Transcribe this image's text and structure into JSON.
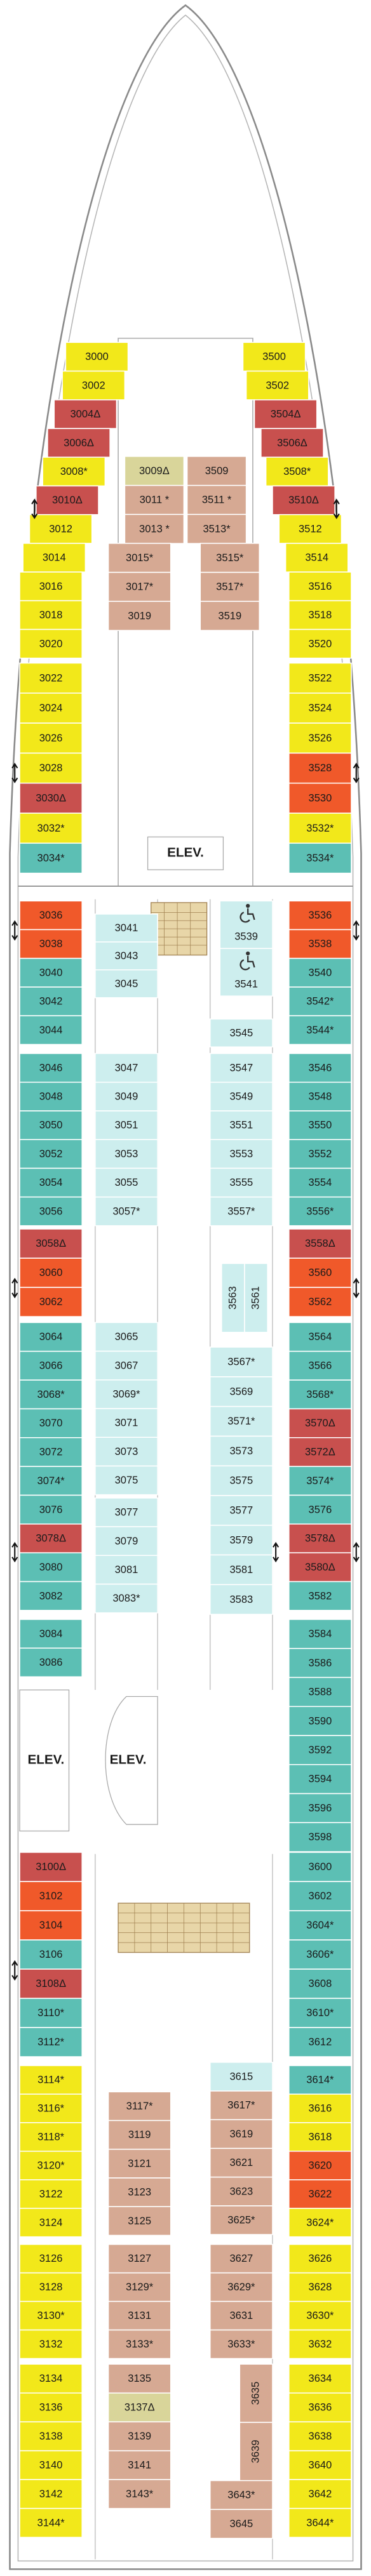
{
  "blocks": [
    {
      "cabins": [
        {
          "label": "3000",
          "color": "#f2e81a"
        },
        {
          "label": "3002",
          "color": "#f2e81a"
        },
        {
          "label": "3004Δ",
          "color": "#c8504e"
        },
        {
          "label": "3006Δ",
          "color": "#c8504e"
        },
        {
          "label": "3008*",
          "color": "#f2e81a"
        },
        {
          "label": "3010Δ",
          "color": "#c8504e"
        },
        {
          "label": "3012",
          "color": "#f2e81a"
        },
        {
          "label": "3014",
          "color": "#f2e81a"
        },
        {
          "label": "3016",
          "color": "#f2e81a"
        },
        {
          "label": "3018",
          "color": "#f2e81a"
        },
        {
          "label": "3020",
          "color": "#f2e81a"
        }
      ]
    },
    {
      "cabins": [
        {
          "label": "3500",
          "color": "#f2e81a"
        },
        {
          "label": "3502",
          "color": "#f2e81a"
        },
        {
          "label": "3504Δ",
          "color": "#c8504e"
        },
        {
          "label": "3506Δ",
          "color": "#c8504e"
        },
        {
          "label": "3508*",
          "color": "#f2e81a"
        },
        {
          "label": "3510Δ",
          "color": "#c8504e"
        },
        {
          "label": "3512",
          "color": "#f2e81a"
        },
        {
          "label": "3514",
          "color": "#f2e81a"
        },
        {
          "label": "3516",
          "color": "#f2e81a"
        },
        {
          "label": "3518",
          "color": "#f2e81a"
        },
        {
          "label": "3520",
          "color": "#f2e81a"
        }
      ]
    },
    {
      "cabins": [
        {
          "label": "3022",
          "color": "#f2e81a"
        },
        {
          "label": "3024",
          "color": "#f2e81a"
        },
        {
          "label": "3026",
          "color": "#f2e81a"
        },
        {
          "label": "3028",
          "color": "#f2e81a"
        },
        {
          "label": "3030Δ",
          "color": "#c8504e"
        },
        {
          "label": "3032*",
          "color": "#f2e81a"
        },
        {
          "label": "3034*",
          "color": "#5cbfb4"
        }
      ]
    },
    {
      "cabins": [
        {
          "label": "3522",
          "color": "#f2e81a"
        },
        {
          "label": "3524",
          "color": "#f2e81a"
        },
        {
          "label": "3526",
          "color": "#f2e81a"
        },
        {
          "label": "3528",
          "color": "#f0592a"
        },
        {
          "label": "3530",
          "color": "#f0592a"
        },
        {
          "label": "3532*",
          "color": "#f2e81a"
        },
        {
          "label": "3534*",
          "color": "#5cbfb4"
        }
      ]
    },
    {
      "cabins": [
        {
          "label": "3009Δ",
          "color": "#d9d59a"
        },
        {
          "label": "3011 *",
          "color": "#d6a993"
        },
        {
          "label": "3013 *",
          "color": "#d6a993"
        }
      ]
    },
    {
      "cabins": [
        {
          "label": "3015*",
          "color": "#d6a993"
        },
        {
          "label": "3017*",
          "color": "#d6a993"
        },
        {
          "label": "3019",
          "color": "#d6a993"
        }
      ]
    },
    {
      "cabins": [
        {
          "label": "3509",
          "color": "#d6a993"
        },
        {
          "label": "3511 *",
          "color": "#d6a993"
        },
        {
          "label": "3513*",
          "color": "#d6a993"
        }
      ]
    },
    {
      "cabins": [
        {
          "label": "3515*",
          "color": "#d6a993"
        },
        {
          "label": "3517*",
          "color": "#d6a993"
        },
        {
          "label": "3519",
          "color": "#d6a993"
        }
      ]
    },
    {
      "cabins": [
        {
          "label": "3036",
          "color": "#f0592a"
        },
        {
          "label": "3038",
          "color": "#f0592a"
        },
        {
          "label": "3040",
          "color": "#5cbfb4"
        },
        {
          "label": "3042",
          "color": "#5cbfb4"
        },
        {
          "label": "3044",
          "color": "#5cbfb4"
        }
      ]
    },
    {
      "cabins": [
        {
          "label": "3046",
          "color": "#5cbfb4"
        },
        {
          "label": "3048",
          "color": "#5cbfb4"
        },
        {
          "label": "3050",
          "color": "#5cbfb4"
        },
        {
          "label": "3052",
          "color": "#5cbfb4"
        },
        {
          "label": "3054",
          "color": "#5cbfb4"
        },
        {
          "label": "3056",
          "color": "#5cbfb4"
        }
      ]
    },
    {
      "cabins": [
        {
          "label": "3058Δ",
          "color": "#c8504e"
        },
        {
          "label": "3060",
          "color": "#f0592a"
        },
        {
          "label": "3062",
          "color": "#f0592a"
        }
      ]
    },
    {
      "cabins": [
        {
          "label": "3064",
          "color": "#5cbfb4"
        },
        {
          "label": "3066",
          "color": "#5cbfb4"
        },
        {
          "label": "3068*",
          "color": "#5cbfb4"
        },
        {
          "label": "3070",
          "color": "#5cbfb4"
        },
        {
          "label": "3072",
          "color": "#5cbfb4"
        },
        {
          "label": "3074*",
          "color": "#5cbfb4"
        },
        {
          "label": "3076",
          "color": "#5cbfb4"
        },
        {
          "label": "3078Δ",
          "color": "#c8504e"
        },
        {
          "label": "3080",
          "color": "#5cbfb4"
        },
        {
          "label": "3082",
          "color": "#5cbfb4"
        }
      ]
    },
    {
      "cabins": [
        {
          "label": "3084",
          "color": "#5cbfb4"
        },
        {
          "label": "3086",
          "color": "#5cbfb4"
        }
      ]
    },
    {
      "cabins": [
        {
          "label": "3100Δ",
          "color": "#c8504e"
        },
        {
          "label": "3102",
          "color": "#f0592a"
        },
        {
          "label": "3104",
          "color": "#f0592a"
        },
        {
          "label": "3106",
          "color": "#5cbfb4"
        },
        {
          "label": "3108Δ",
          "color": "#c8504e"
        },
        {
          "label": "3110*",
          "color": "#5cbfb4"
        },
        {
          "label": "3112*",
          "color": "#5cbfb4"
        }
      ]
    },
    {
      "cabins": [
        {
          "label": "3114*",
          "color": "#f2e81a"
        },
        {
          "label": "3116*",
          "color": "#f2e81a"
        },
        {
          "label": "3118*",
          "color": "#f2e81a"
        },
        {
          "label": "3120*",
          "color": "#f2e81a"
        },
        {
          "label": "3122",
          "color": "#f2e81a"
        },
        {
          "label": "3124",
          "color": "#f2e81a"
        }
      ]
    },
    {
      "cabins": [
        {
          "label": "3126",
          "color": "#f2e81a"
        },
        {
          "label": "3128",
          "color": "#f2e81a"
        },
        {
          "label": "3130*",
          "color": "#f2e81a"
        },
        {
          "label": "3132",
          "color": "#f2e81a"
        }
      ]
    },
    {
      "cabins": [
        {
          "label": "3134",
          "color": "#f2e81a"
        },
        {
          "label": "3136",
          "color": "#f2e81a"
        },
        {
          "label": "3138",
          "color": "#f2e81a"
        },
        {
          "label": "3140",
          "color": "#f2e81a"
        },
        {
          "label": "3142",
          "color": "#f2e81a"
        },
        {
          "label": "3144*",
          "color": "#f2e81a"
        }
      ]
    },
    {
      "cabins": [
        {
          "label": "3536",
          "color": "#f0592a"
        },
        {
          "label": "3538",
          "color": "#f0592a"
        },
        {
          "label": "3540",
          "color": "#5cbfb4"
        },
        {
          "label": "3542*",
          "color": "#5cbfb4"
        },
        {
          "label": "3544*",
          "color": "#5cbfb4"
        }
      ]
    },
    {
      "cabins": [
        {
          "label": "3546",
          "color": "#5cbfb4"
        },
        {
          "label": "3548",
          "color": "#5cbfb4"
        },
        {
          "label": "3550",
          "color": "#5cbfb4"
        },
        {
          "label": "3552",
          "color": "#5cbfb4"
        },
        {
          "label": "3554",
          "color": "#5cbfb4"
        },
        {
          "label": "3556*",
          "color": "#5cbfb4"
        }
      ]
    },
    {
      "cabins": [
        {
          "label": "3558Δ",
          "color": "#c8504e"
        },
        {
          "label": "3560",
          "color": "#f0592a"
        },
        {
          "label": "3562",
          "color": "#f0592a"
        }
      ]
    },
    {
      "cabins": [
        {
          "label": "3564",
          "color": "#5cbfb4"
        },
        {
          "label": "3566",
          "color": "#5cbfb4"
        },
        {
          "label": "3568*",
          "color": "#5cbfb4"
        },
        {
          "label": "3570Δ",
          "color": "#c8504e"
        },
        {
          "label": "3572Δ",
          "color": "#c8504e"
        },
        {
          "label": "3574*",
          "color": "#5cbfb4"
        },
        {
          "label": "3576",
          "color": "#5cbfb4"
        },
        {
          "label": "3578Δ",
          "color": "#c8504e"
        },
        {
          "label": "3580Δ",
          "color": "#c8504e"
        },
        {
          "label": "3582",
          "color": "#5cbfb4"
        }
      ]
    },
    {
      "cabins": [
        {
          "label": "3584",
          "color": "#5cbfb4"
        },
        {
          "label": "3586",
          "color": "#5cbfb4"
        },
        {
          "label": "3588",
          "color": "#5cbfb4"
        },
        {
          "label": "3590",
          "color": "#5cbfb4"
        },
        {
          "label": "3592",
          "color": "#5cbfb4"
        },
        {
          "label": "3594",
          "color": "#5cbfb4"
        },
        {
          "label": "3596",
          "color": "#5cbfb4"
        },
        {
          "label": "3598",
          "color": "#5cbfb4"
        }
      ]
    },
    {
      "cabins": [
        {
          "label": "3600",
          "color": "#5cbfb4"
        },
        {
          "label": "3602",
          "color": "#5cbfb4"
        },
        {
          "label": "3604*",
          "color": "#5cbfb4"
        },
        {
          "label": "3606*",
          "color": "#5cbfb4"
        },
        {
          "label": "3608",
          "color": "#5cbfb4"
        },
        {
          "label": "3610*",
          "color": "#5cbfb4"
        },
        {
          "label": "3612",
          "color": "#5cbfb4"
        }
      ]
    },
    {
      "cabins": [
        {
          "label": "3614*",
          "color": "#5cbfb4"
        },
        {
          "label": "3616",
          "color": "#f2e81a"
        },
        {
          "label": "3618",
          "color": "#f2e81a"
        },
        {
          "label": "3620",
          "color": "#f0592a"
        },
        {
          "label": "3622",
          "color": "#f0592a"
        },
        {
          "label": "3624*",
          "color": "#f2e81a"
        }
      ]
    },
    {
      "cabins": [
        {
          "label": "3626",
          "color": "#f2e81a"
        },
        {
          "label": "3628",
          "color": "#f2e81a"
        },
        {
          "label": "3630*",
          "color": "#f2e81a"
        },
        {
          "label": "3632",
          "color": "#f2e81a"
        }
      ]
    },
    {
      "cabins": [
        {
          "label": "3634",
          "color": "#f2e81a"
        },
        {
          "label": "3636",
          "color": "#f2e81a"
        },
        {
          "label": "3638",
          "color": "#f2e81a"
        },
        {
          "label": "3640",
          "color": "#f2e81a"
        },
        {
          "label": "3642",
          "color": "#f2e81a"
        },
        {
          "label": "3644*",
          "color": "#f2e81a"
        }
      ]
    },
    {
      "cabins": [
        {
          "label": "3041",
          "color": "#cdeeee"
        },
        {
          "label": "3043",
          "color": "#cdeeee"
        },
        {
          "label": "3045",
          "color": "#cdeeee"
        }
      ]
    },
    {
      "cabins": [
        {
          "label": "3047",
          "color": "#cdeeee"
        },
        {
          "label": "3049",
          "color": "#cdeeee"
        },
        {
          "label": "3051",
          "color": "#cdeeee"
        },
        {
          "label": "3053",
          "color": "#cdeeee"
        },
        {
          "label": "3055",
          "color": "#cdeeee"
        },
        {
          "label": "3057*",
          "color": "#cdeeee"
        }
      ]
    },
    {
      "cabins": [
        {
          "label": "3065",
          "color": "#cdeeee"
        },
        {
          "label": "3067",
          "color": "#cdeeee"
        },
        {
          "label": "3069*",
          "color": "#cdeeee"
        },
        {
          "label": "3071",
          "color": "#cdeeee"
        },
        {
          "label": "3073",
          "color": "#cdeeee"
        },
        {
          "label": "3075",
          "color": "#cdeeee"
        }
      ]
    },
    {
      "cabins": [
        {
          "label": "3077",
          "color": "#cdeeee"
        },
        {
          "label": "3079",
          "color": "#cdeeee"
        },
        {
          "label": "3081",
          "color": "#cdeeee"
        },
        {
          "label": "3083*",
          "color": "#cdeeee"
        }
      ]
    },
    {
      "cabins": [
        {
          "label": "3117*",
          "color": "#d6a993"
        },
        {
          "label": "3119",
          "color": "#d6a993"
        },
        {
          "label": "3121",
          "color": "#d6a993"
        },
        {
          "label": "3123",
          "color": "#d6a993"
        },
        {
          "label": "3125",
          "color": "#d6a993"
        }
      ]
    },
    {
      "cabins": [
        {
          "label": "3127",
          "color": "#d6a993"
        },
        {
          "label": "3129*",
          "color": "#d6a993"
        },
        {
          "label": "3131",
          "color": "#d6a993"
        },
        {
          "label": "3133*",
          "color": "#d6a993"
        }
      ]
    },
    {
      "cabins": [
        {
          "label": "3135",
          "color": "#d6a993"
        },
        {
          "label": "3137Δ",
          "color": "#d9d59a"
        },
        {
          "label": "3139",
          "color": "#d6a993"
        },
        {
          "label": "3141",
          "color": "#d6a993"
        },
        {
          "label": "3143*",
          "color": "#d6a993"
        }
      ]
    },
    {
      "cabins": [
        {
          "label": "3539",
          "color": "#cdeeee"
        },
        {
          "label": "3541",
          "color": "#cdeeee"
        }
      ]
    },
    {
      "cabins": [
        {
          "label": "3545",
          "color": "#cdeeee"
        }
      ]
    },
    {
      "cabins": [
        {
          "label": "3547",
          "color": "#cdeeee"
        },
        {
          "label": "3549",
          "color": "#cdeeee"
        },
        {
          "label": "3551",
          "color": "#cdeeee"
        },
        {
          "label": "3553",
          "color": "#cdeeee"
        },
        {
          "label": "3555",
          "color": "#cdeeee"
        },
        {
          "label": "3557*",
          "color": "#cdeeee"
        }
      ]
    },
    {
      "cabins": [
        {
          "label": "3563",
          "color": "#cdeeee"
        },
        {
          "label": "3561",
          "color": "#cdeeee"
        }
      ]
    },
    {
      "cabins": [
        {
          "label": "3567*",
          "color": "#cdeeee"
        },
        {
          "label": "3569",
          "color": "#cdeeee"
        },
        {
          "label": "3571*",
          "color": "#cdeeee"
        },
        {
          "label": "3573",
          "color": "#cdeeee"
        },
        {
          "label": "3575",
          "color": "#cdeeee"
        },
        {
          "label": "3577",
          "color": "#cdeeee"
        },
        {
          "label": "3579",
          "color": "#cdeeee"
        },
        {
          "label": "3581",
          "color": "#cdeeee"
        },
        {
          "label": "3583",
          "color": "#cdeeee"
        }
      ]
    },
    {
      "cabins": [
        {
          "label": "3615",
          "color": "#cdeeee"
        },
        {
          "label": "3617*",
          "color": "#d6a993"
        },
        {
          "label": "3619",
          "color": "#d6a993"
        },
        {
          "label": "3621",
          "color": "#d6a993"
        },
        {
          "label": "3623",
          "color": "#d6a993"
        },
        {
          "label": "3625*",
          "color": "#d6a993"
        }
      ]
    },
    {
      "cabins": [
        {
          "label": "3627",
          "color": "#d6a993"
        },
        {
          "label": "3629*",
          "color": "#d6a993"
        },
        {
          "label": "3631",
          "color": "#d6a993"
        },
        {
          "label": "3633*",
          "color": "#d6a993"
        }
      ]
    },
    {
      "cabins": [
        {
          "label": "3635",
          "color": "#d6a993"
        },
        {
          "label": "3639",
          "color": "#d6a993"
        }
      ]
    },
    {
      "cabins": [
        {
          "label": "3643*",
          "color": "#d6a993"
        },
        {
          "label": "3645",
          "color": "#d6a993"
        }
      ]
    }
  ],
  "elevators": [
    "ELEV.",
    "ELEV.",
    "ELEV."
  ]
}
